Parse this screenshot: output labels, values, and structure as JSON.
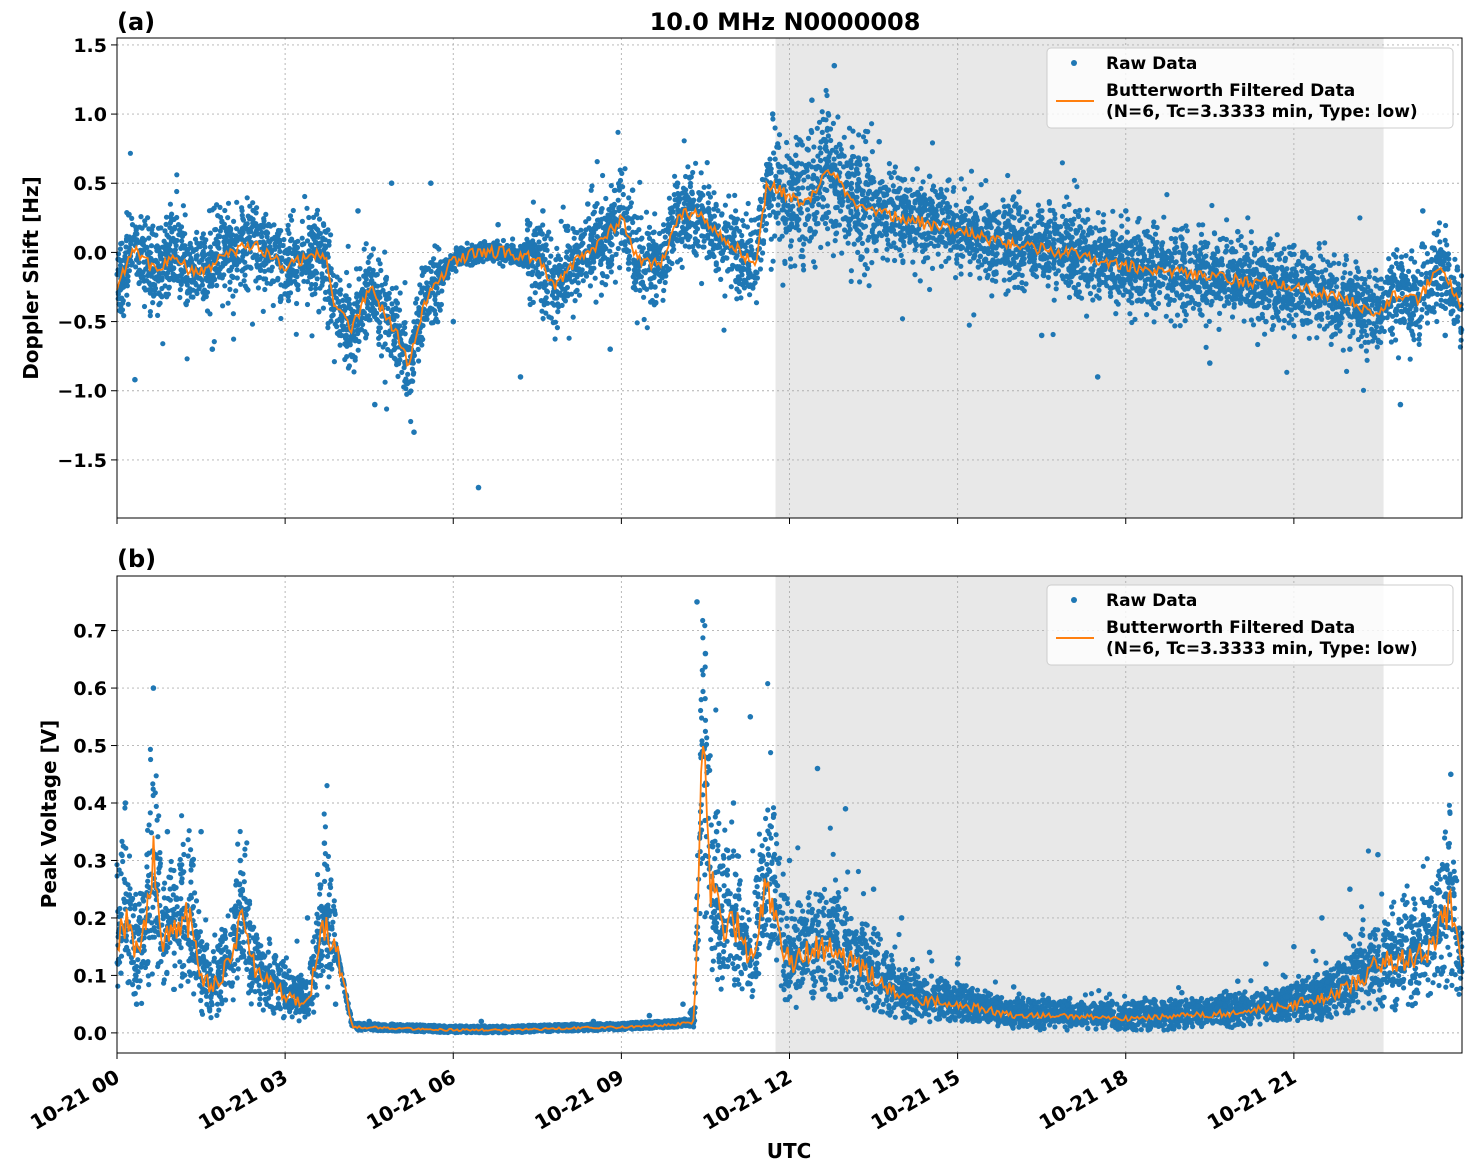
{
  "figure": {
    "title": "10.0 MHz N0000008",
    "xlabel": "UTC",
    "x_ticks": [
      "10-21 00",
      "10-21 03",
      "10-21 06",
      "10-21 09",
      "10-21 12",
      "10-21 15",
      "10-21 18",
      "10-21 21"
    ],
    "shaded_interval_hours": [
      11.75,
      22.6
    ],
    "colors": {
      "raw": "#1f77b4",
      "filtered": "#ff7f0e",
      "shade": "#e8e8e8",
      "grid": "#b0b0b0"
    }
  },
  "chart_data": [
    {
      "type": "scatter",
      "panel_label": "(a)",
      "ylabel": "Doppler Shift [Hz]",
      "xlim_hours": [
        0,
        24
      ],
      "ylim": [
        -1.92,
        1.55
      ],
      "y_ticks": [
        -1.5,
        -1.0,
        -0.5,
        0.0,
        0.5,
        1.0,
        1.5
      ],
      "y_tick_labels": [
        "−1.5",
        "−1.0",
        "−0.5",
        "0.0",
        "0.5",
        "1.0",
        "1.5"
      ],
      "grid": true,
      "legend_position": "top-right",
      "legend": [
        "Raw Data",
        "Butterworth Filtered Data",
        "(N=6, Tc=3.3333 min, Type: low)"
      ],
      "series": [
        {
          "name": "Butterworth Filtered Data",
          "x_hours": [
            0,
            0.3,
            0.7,
            1.0,
            1.3,
            1.7,
            2.0,
            2.5,
            3.0,
            3.3,
            3.7,
            3.9,
            4.2,
            4.5,
            5.0,
            5.2,
            5.5,
            6.0,
            6.5,
            7.0,
            7.5,
            7.8,
            8.2,
            8.7,
            9.0,
            9.3,
            9.7,
            10.0,
            10.3,
            10.7,
            11.0,
            11.4,
            11.6,
            11.8,
            12.0,
            12.3,
            12.6,
            12.8,
            13.0,
            13.5,
            14.0,
            14.5,
            15.0,
            15.5,
            16.0,
            17.0,
            18.0,
            19.0,
            20.0,
            21.0,
            22.0,
            22.5,
            22.8,
            23.2,
            23.6,
            24.0
          ],
          "y": [
            -0.25,
            0.05,
            -0.15,
            0.0,
            -0.15,
            -0.1,
            0.0,
            0.05,
            -0.1,
            -0.05,
            0.0,
            -0.4,
            -0.55,
            -0.25,
            -0.6,
            -0.8,
            -0.35,
            -0.05,
            0.0,
            0.0,
            -0.05,
            -0.25,
            -0.05,
            0.1,
            0.25,
            -0.05,
            -0.1,
            0.25,
            0.3,
            0.15,
            0.05,
            -0.1,
            0.5,
            0.45,
            0.4,
            0.35,
            0.55,
            0.6,
            0.4,
            0.3,
            0.25,
            0.2,
            0.15,
            0.1,
            0.05,
            0.0,
            -0.1,
            -0.15,
            -0.2,
            -0.25,
            -0.35,
            -0.45,
            -0.3,
            -0.35,
            -0.1,
            -0.4
          ]
        },
        {
          "name": "Raw Data",
          "x_hours": [
            0.32,
            1.0,
            1.7,
            2.3,
            3.0,
            3.6,
            4.0,
            4.3,
            4.6,
            4.9,
            5.3,
            5.6,
            6.0,
            6.45,
            6.8,
            7.2,
            7.6,
            8.0,
            8.4,
            8.8,
            9.2,
            9.6,
            10.0,
            10.5,
            11.0,
            11.3,
            11.7,
            12.0,
            12.4,
            12.8,
            13.2,
            13.6,
            14.0,
            14.5,
            15.0,
            15.5,
            16.0,
            16.5,
            17.0,
            17.5,
            18.0,
            18.5,
            19.0,
            19.5,
            20.0,
            20.5,
            21.0,
            21.5,
            22.0,
            22.5,
            22.9,
            23.3,
            23.7
          ],
          "y": [
            -0.92,
            0.1,
            -0.7,
            0.2,
            -0.3,
            0.05,
            -0.6,
            0.3,
            -1.1,
            0.5,
            -1.3,
            0.5,
            -0.5,
            -1.7,
            0.2,
            -0.9,
            0.3,
            -0.3,
            0.35,
            -0.7,
            0.45,
            -0.25,
            0.5,
            0.3,
            -0.1,
            0.0,
            1.0,
            0.5,
            1.1,
            1.35,
            0.6,
            0.8,
            0.1,
            0.55,
            0.2,
            -0.05,
            0.4,
            -0.6,
            0.0,
            -0.9,
            0.3,
            -0.4,
            0.1,
            -0.8,
            0.15,
            -0.5,
            0.05,
            -0.3,
            -0.7,
            -0.5,
            -1.1,
            0.3,
            -0.6
          ]
        }
      ]
    },
    {
      "type": "scatter",
      "panel_label": "(b)",
      "ylabel": "Peak Voltage [V]",
      "xlim_hours": [
        0,
        24
      ],
      "ylim": [
        -0.035,
        0.795
      ],
      "y_ticks": [
        0.0,
        0.1,
        0.2,
        0.3,
        0.4,
        0.5,
        0.6,
        0.7
      ],
      "y_tick_labels": [
        "0.0",
        "0.1",
        "0.2",
        "0.3",
        "0.4",
        "0.5",
        "0.6",
        "0.7"
      ],
      "grid": true,
      "legend_position": "top-right",
      "legend": [
        "Raw Data",
        "Butterworth Filtered Data",
        "(N=6, Tc=3.3333 min, Type: low)"
      ],
      "series": [
        {
          "name": "Butterworth Filtered Data",
          "x_hours": [
            0,
            0.15,
            0.4,
            0.65,
            0.8,
            1.0,
            1.3,
            1.5,
            1.7,
            2.0,
            2.2,
            2.5,
            2.8,
            3.1,
            3.4,
            3.7,
            3.9,
            4.2,
            5.0,
            6.0,
            7.0,
            8.0,
            9.0,
            10.0,
            10.3,
            10.45,
            10.6,
            10.8,
            11.0,
            11.3,
            11.6,
            12.0,
            12.5,
            13.0,
            13.5,
            14.0,
            15.0,
            16.0,
            17.0,
            18.0,
            19.0,
            20.0,
            21.0,
            21.5,
            22.0,
            22.5,
            23.0,
            23.5,
            23.8,
            24.0
          ],
          "y": [
            0.16,
            0.2,
            0.13,
            0.3,
            0.15,
            0.18,
            0.2,
            0.1,
            0.08,
            0.12,
            0.2,
            0.1,
            0.08,
            0.06,
            0.05,
            0.19,
            0.15,
            0.01,
            0.008,
            0.005,
            0.005,
            0.008,
            0.01,
            0.015,
            0.02,
            0.5,
            0.25,
            0.18,
            0.2,
            0.12,
            0.25,
            0.12,
            0.15,
            0.13,
            0.1,
            0.06,
            0.05,
            0.03,
            0.03,
            0.025,
            0.03,
            0.035,
            0.05,
            0.06,
            0.08,
            0.12,
            0.13,
            0.15,
            0.24,
            0.1
          ]
        },
        {
          "name": "Raw Data",
          "x_hours": [
            0.15,
            0.35,
            0.65,
            0.9,
            1.2,
            1.5,
            1.8,
            2.2,
            2.6,
            3.0,
            3.4,
            3.7,
            3.9,
            4.5,
            5.5,
            6.5,
            7.5,
            8.5,
            9.5,
            10.1,
            10.35,
            10.5,
            10.7,
            11.0,
            11.3,
            11.6,
            12.0,
            12.5,
            13.0,
            13.5,
            14.0,
            14.5,
            15.0,
            16.0,
            17.0,
            18.0,
            19.0,
            20.0,
            20.5,
            21.0,
            21.5,
            22.0,
            22.5,
            23.0,
            23.5,
            23.8
          ],
          "y": [
            0.4,
            0.05,
            0.6,
            0.35,
            0.2,
            0.35,
            0.15,
            0.3,
            0.1,
            0.05,
            0.2,
            0.33,
            0.05,
            0.02,
            0.01,
            0.02,
            0.01,
            0.02,
            0.03,
            0.05,
            0.75,
            0.66,
            0.35,
            0.4,
            0.55,
            0.25,
            0.3,
            0.46,
            0.39,
            0.25,
            0.2,
            0.14,
            0.12,
            0.08,
            0.06,
            0.05,
            0.07,
            0.09,
            0.12,
            0.15,
            0.2,
            0.25,
            0.31,
            0.2,
            0.25,
            0.45
          ]
        }
      ]
    }
  ]
}
